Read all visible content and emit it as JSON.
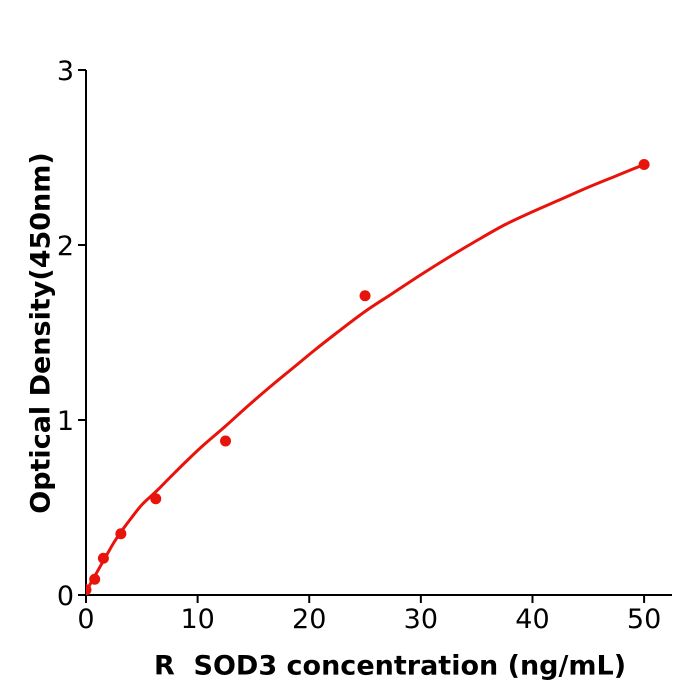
{
  "figure": {
    "background": "#ffffff",
    "accent_color": "#e8130b",
    "axis_color": "#000000"
  },
  "chart_data": {
    "type": "scatter",
    "title": "",
    "xlabel": "R  SOD3 concentration (ng/mL)",
    "ylabel": "Optical Density(450nm)",
    "xlim": [
      0,
      52.5
    ],
    "ylim": [
      0,
      3
    ],
    "xticks": [
      0,
      10,
      20,
      30,
      40,
      50
    ],
    "yticks": [
      0,
      1,
      2,
      3
    ],
    "grid": false,
    "legend_position": "none",
    "series": [
      {
        "name": "standard-points",
        "type": "scatter",
        "marker": "circle",
        "color": "#e8130b",
        "marker_radius": 5.5,
        "points": [
          {
            "x": 0,
            "y": 0.03
          },
          {
            "x": 0.78,
            "y": 0.09
          },
          {
            "x": 1.56,
            "y": 0.21
          },
          {
            "x": 3.125,
            "y": 0.35
          },
          {
            "x": 6.25,
            "y": 0.55
          },
          {
            "x": 12.5,
            "y": 0.88
          },
          {
            "x": 25,
            "y": 1.71
          },
          {
            "x": 50,
            "y": 2.46
          }
        ]
      },
      {
        "name": "fitted-curve",
        "type": "line",
        "color": "#e8130b",
        "stroke_width": 3,
        "points": [
          {
            "x": 0,
            "y": 0.02
          },
          {
            "x": 0.4,
            "y": 0.065
          },
          {
            "x": 0.8,
            "y": 0.11
          },
          {
            "x": 1.2,
            "y": 0.155
          },
          {
            "x": 1.6,
            "y": 0.2
          },
          {
            "x": 2.0,
            "y": 0.245
          },
          {
            "x": 2.5,
            "y": 0.3
          },
          {
            "x": 3.125,
            "y": 0.36
          },
          {
            "x": 4,
            "y": 0.435
          },
          {
            "x": 5,
            "y": 0.515
          },
          {
            "x": 6.25,
            "y": 0.59
          },
          {
            "x": 7.5,
            "y": 0.67
          },
          {
            "x": 9,
            "y": 0.765
          },
          {
            "x": 10.5,
            "y": 0.855
          },
          {
            "x": 12.5,
            "y": 0.965
          },
          {
            "x": 14.5,
            "y": 1.08
          },
          {
            "x": 16.5,
            "y": 1.19
          },
          {
            "x": 18.5,
            "y": 1.295
          },
          {
            "x": 20.5,
            "y": 1.4
          },
          {
            "x": 22.5,
            "y": 1.5
          },
          {
            "x": 25,
            "y": 1.62
          },
          {
            "x": 27.5,
            "y": 1.725
          },
          {
            "x": 30,
            "y": 1.83
          },
          {
            "x": 32.5,
            "y": 1.93
          },
          {
            "x": 35,
            "y": 2.025
          },
          {
            "x": 37.5,
            "y": 2.115
          },
          {
            "x": 40,
            "y": 2.19
          },
          {
            "x": 42.5,
            "y": 2.26
          },
          {
            "x": 45,
            "y": 2.33
          },
          {
            "x": 47.5,
            "y": 2.395
          },
          {
            "x": 50,
            "y": 2.46
          }
        ]
      }
    ]
  }
}
